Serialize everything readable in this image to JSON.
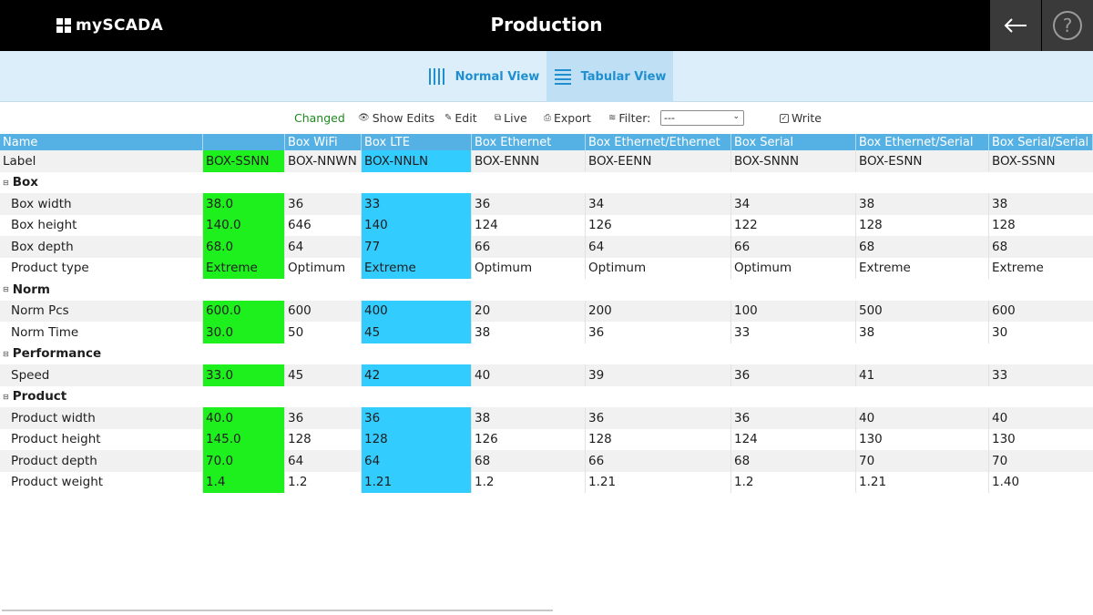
{
  "app": {
    "logo_text": "mySCADA",
    "title": "Production"
  },
  "icons": {
    "back": "arrow-left-icon",
    "help": "question-mark-icon",
    "normal_view": "bars-vertical-icon",
    "tabular_view": "list-lines-icon"
  },
  "colors": {
    "changed": "#1ef01e",
    "selected": "#33ccff",
    "header": "#55b1e3",
    "accent": "#1f8fd0"
  },
  "views": {
    "normal_label": "Normal View",
    "tabular_label": "Tabular View",
    "active": "Tabular View"
  },
  "toolbar": {
    "changed": "Changed",
    "show_edits": "Show Edits",
    "edit": "Edit",
    "live": "Live",
    "export": "Export",
    "filter_label": "Filter:",
    "filter_value": "---",
    "write": "Write"
  },
  "table": {
    "columns": [
      "Name",
      "",
      "Box WiFi",
      "Box LTE",
      "Box Ethernet",
      "Box Ethernet/Ethernet",
      "Box Serial",
      "Box Ethernet/Serial",
      "Box Serial/Serial"
    ],
    "label_row": [
      "Label",
      "BOX-SSNN",
      "BOX-NNWN",
      "BOX-NNLN",
      "BOX-ENNN",
      "BOX-EENN",
      "BOX-SNNN",
      "BOX-ESNN",
      "BOX-SSNN"
    ],
    "groups": [
      {
        "name": "Box",
        "rows": [
          [
            "Box width",
            "38.0",
            "36",
            "33",
            "36",
            "34",
            "34",
            "38",
            "38"
          ],
          [
            "Box height",
            "140.0",
            "646",
            "140",
            "124",
            "126",
            "122",
            "128",
            "128"
          ],
          [
            "Box depth",
            "68.0",
            "64",
            "77",
            "66",
            "64",
            "66",
            "68",
            "68"
          ],
          [
            "Product type",
            "Extreme",
            "Optimum",
            "Extreme",
            "Optimum",
            "Optimum",
            "Optimum",
            "Extreme",
            "Extreme"
          ]
        ]
      },
      {
        "name": "Norm",
        "rows": [
          [
            "Norm Pcs",
            "600.0",
            "600",
            "400",
            "20",
            "200",
            "100",
            "500",
            "600"
          ],
          [
            "Norm Time",
            "30.0",
            "50",
            "45",
            "38",
            "36",
            "33",
            "38",
            "30"
          ]
        ]
      },
      {
        "name": "Performance",
        "rows": [
          [
            "Speed",
            "33.0",
            "45",
            "42",
            "40",
            "39",
            "36",
            "41",
            "33"
          ]
        ]
      },
      {
        "name": "Product",
        "rows": [
          [
            "Product width",
            "40.0",
            "36",
            "36",
            "38",
            "36",
            "36",
            "40",
            "40"
          ],
          [
            "Product height",
            "145.0",
            "128",
            "128",
            "126",
            "128",
            "124",
            "130",
            "130"
          ],
          [
            "Product depth",
            "70.0",
            "64",
            "64",
            "68",
            "66",
            "68",
            "70",
            "70"
          ],
          [
            "Product weight",
            "1.4",
            "1.2",
            "1.21",
            "1.2",
            "1.21",
            "1.2",
            "1.21",
            "1.40"
          ]
        ]
      }
    ]
  }
}
